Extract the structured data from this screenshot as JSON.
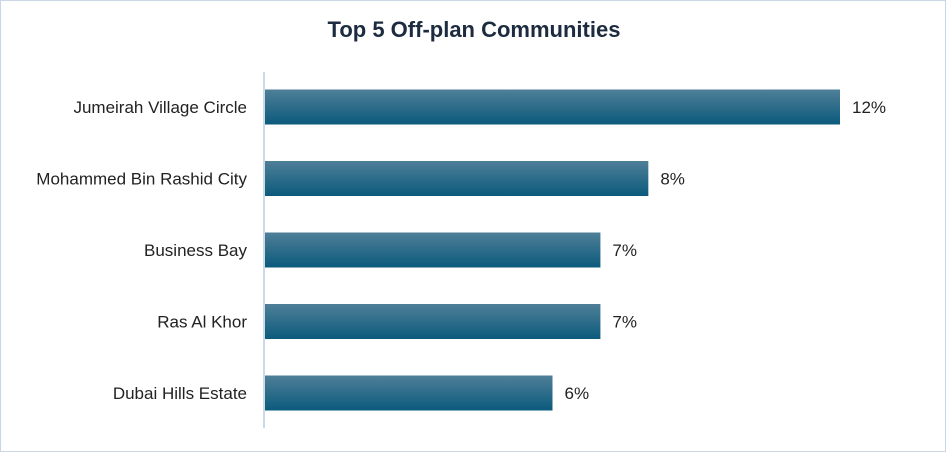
{
  "chart_data": {
    "type": "bar",
    "orientation": "horizontal",
    "title": "Top 5 Off-plan Communities",
    "categories": [
      "Jumeirah Village Circle",
      "Mohammed Bin Rashid City",
      "Business Bay",
      "Ras Al Khor",
      "Dubai Hills Estate"
    ],
    "values": [
      12,
      8,
      7,
      7,
      6
    ],
    "value_labels": [
      "12%",
      "8%",
      "7%",
      "7%",
      "6%"
    ],
    "xlim": [
      0,
      13
    ],
    "grid": false,
    "legend": "none",
    "colors": {
      "bar_top": "#4f7f98",
      "bar_bottom": "#0b5a7c",
      "axis": "#b9cde0",
      "text": "#222222",
      "title": "#1c2b3f"
    }
  }
}
